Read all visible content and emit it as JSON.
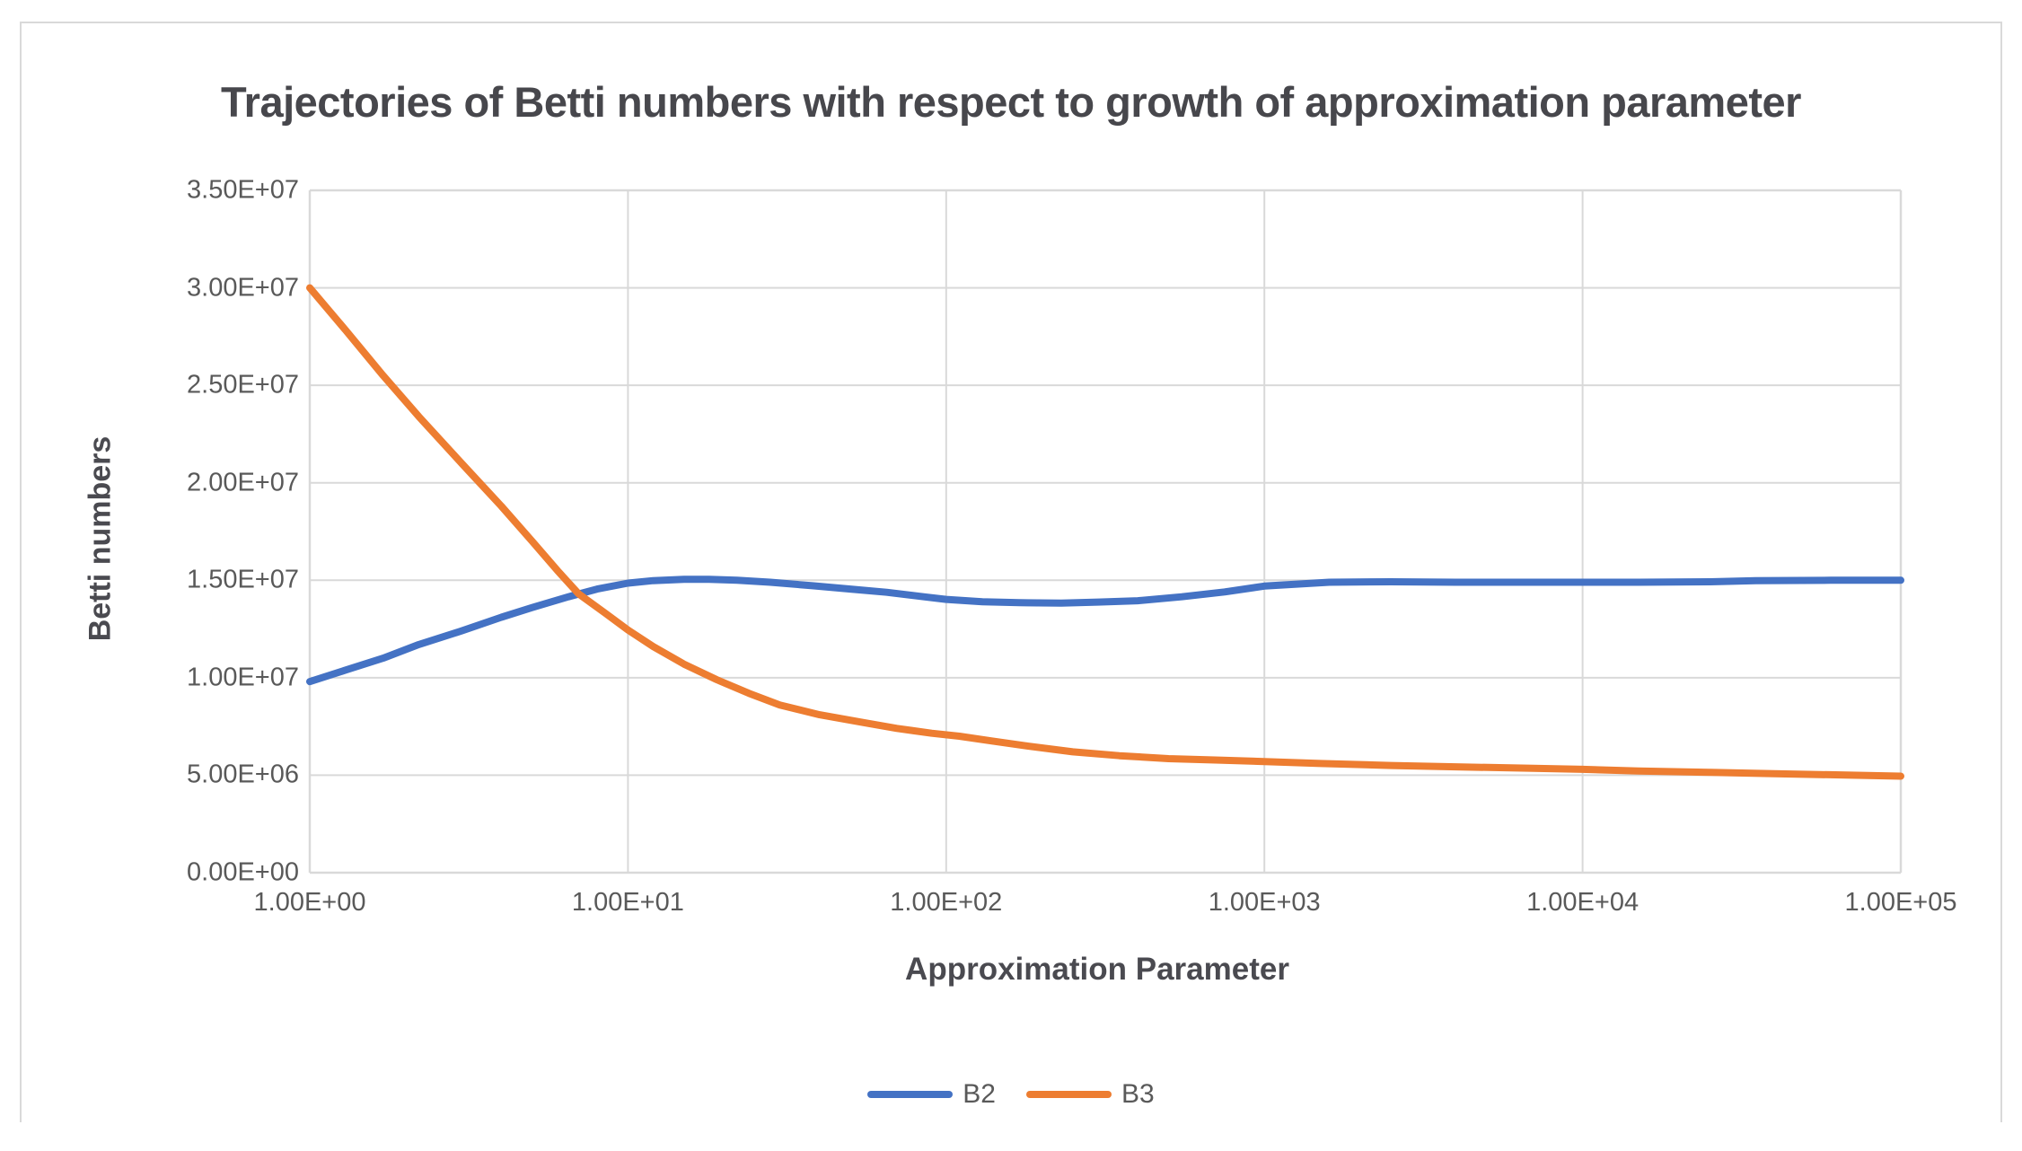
{
  "chart_data": {
    "type": "line",
    "title": "Trajectories of Betti numbers with respect to growth of approximation parameter",
    "xlabel": "Approximation Parameter",
    "ylabel": "Betti numbers",
    "x_scale": "log",
    "xlim": [
      1,
      100000
    ],
    "ylim": [
      0,
      35000000
    ],
    "x_tick_labels": [
      "1.00E+00",
      "1.00E+01",
      "1.00E+02",
      "1.00E+03",
      "1.00E+04",
      "1.00E+05"
    ],
    "y_tick_labels": [
      "0.00E+00",
      "5.00E+06",
      "1.00E+07",
      "1.50E+07",
      "2.00E+07",
      "2.50E+07",
      "3.00E+07",
      "3.50E+07"
    ],
    "grid": true,
    "legend_position": "bottom",
    "series": [
      {
        "name": "B2",
        "color": "#4472C4",
        "points": [
          [
            1,
            9800000
          ],
          [
            1.3,
            10400000
          ],
          [
            1.7,
            11000000
          ],
          [
            2.2,
            11700000
          ],
          [
            3,
            12400000
          ],
          [
            4,
            13100000
          ],
          [
            5,
            13600000
          ],
          [
            6.5,
            14150000
          ],
          [
            8,
            14550000
          ],
          [
            10,
            14850000
          ],
          [
            12,
            14980000
          ],
          [
            15,
            15050000
          ],
          [
            18,
            15050000
          ],
          [
            22,
            15000000
          ],
          [
            28,
            14900000
          ],
          [
            38,
            14720000
          ],
          [
            50,
            14550000
          ],
          [
            65,
            14380000
          ],
          [
            85,
            14150000
          ],
          [
            100,
            14020000
          ],
          [
            130,
            13900000
          ],
          [
            170,
            13850000
          ],
          [
            230,
            13830000
          ],
          [
            300,
            13880000
          ],
          [
            400,
            13950000
          ],
          [
            550,
            14150000
          ],
          [
            750,
            14400000
          ],
          [
            1000,
            14700000
          ],
          [
            1600,
            14900000
          ],
          [
            2500,
            14920000
          ],
          [
            4000,
            14900000
          ],
          [
            6000,
            14900000
          ],
          [
            10000,
            14900000
          ],
          [
            15000,
            14900000
          ],
          [
            25000,
            14920000
          ],
          [
            35000,
            14980000
          ],
          [
            60000,
            15000000
          ],
          [
            100000,
            15000000
          ]
        ]
      },
      {
        "name": "B3",
        "color": "#ED7D31",
        "points": [
          [
            1,
            30000000
          ],
          [
            1.3,
            27800000
          ],
          [
            1.7,
            25500000
          ],
          [
            2.2,
            23400000
          ],
          [
            3,
            21000000
          ],
          [
            4,
            18800000
          ],
          [
            5,
            17000000
          ],
          [
            6,
            15500000
          ],
          [
            7,
            14300000
          ],
          [
            8.5,
            13300000
          ],
          [
            10,
            12450000
          ],
          [
            12,
            11600000
          ],
          [
            15,
            10700000
          ],
          [
            19,
            9900000
          ],
          [
            24,
            9200000
          ],
          [
            30,
            8600000
          ],
          [
            40,
            8100000
          ],
          [
            55,
            7700000
          ],
          [
            70,
            7400000
          ],
          [
            90,
            7150000
          ],
          [
            110,
            7000000
          ],
          [
            140,
            6750000
          ],
          [
            180,
            6500000
          ],
          [
            250,
            6200000
          ],
          [
            350,
            6000000
          ],
          [
            500,
            5850000
          ],
          [
            700,
            5780000
          ],
          [
            1000,
            5700000
          ],
          [
            1500,
            5600000
          ],
          [
            2500,
            5500000
          ],
          [
            4000,
            5430000
          ],
          [
            7000,
            5350000
          ],
          [
            10000,
            5300000
          ],
          [
            15000,
            5220000
          ],
          [
            25000,
            5150000
          ],
          [
            40000,
            5080000
          ],
          [
            70000,
            5000000
          ],
          [
            100000,
            4950000
          ]
        ]
      }
    ]
  },
  "colors": {
    "frame_border": "#D9D9D9",
    "gridline": "#D9D9D9",
    "title_text": "#47474C",
    "axis_title_text": "#4A4A50",
    "tick_text": "#595959",
    "legend_text": "#595959",
    "series_b2": "#4472C4",
    "series_b3": "#ED7D31"
  }
}
